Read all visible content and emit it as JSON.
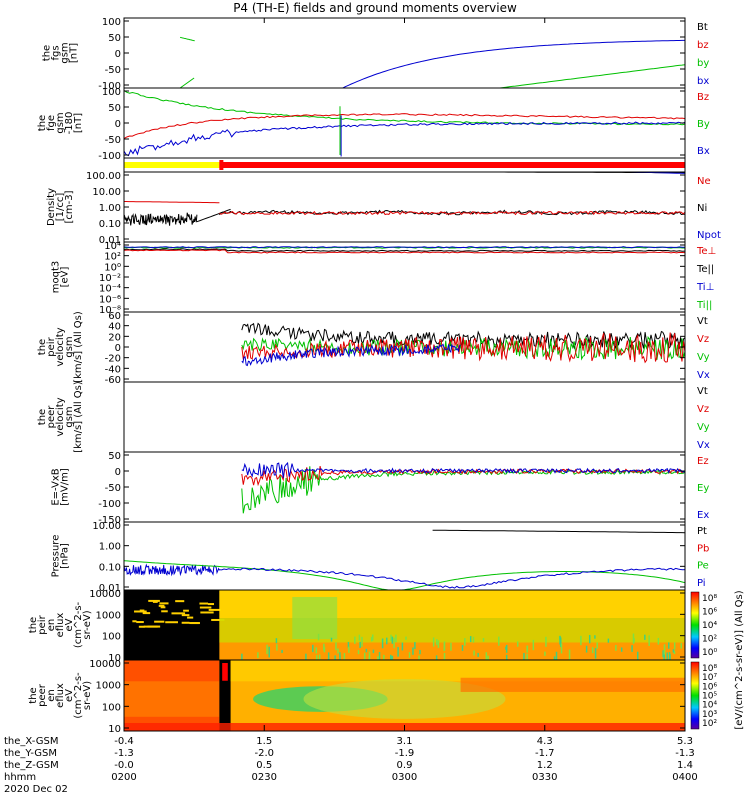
{
  "title": "P4 (TH-E) fields and ground moments overview",
  "chart_data": {
    "type": "line",
    "x_range_hhmm": [
      "0200",
      "0400"
    ],
    "panels": [
      {
        "id": "fgs",
        "ylabel": [
          "the",
          "fgs",
          "gsm",
          "[nT]"
        ],
        "yticks": [
          "100",
          "50",
          "0",
          "-50",
          "-100"
        ],
        "ylim": [
          -100,
          110
        ],
        "legend": [
          {
            "name": "Bt",
            "color": "#000000"
          },
          {
            "name": "bz",
            "color": "#e00000"
          },
          {
            "name": "by",
            "color": "#00c000"
          },
          {
            "name": "bx",
            "color": "#0000d0"
          }
        ]
      },
      {
        "id": "fge",
        "ylabel": [
          "the",
          "fge",
          "gsm",
          "-180",
          "[nT]"
        ],
        "yticks": [
          "100",
          "50",
          "0",
          "-50",
          "-100"
        ],
        "ylim": [
          -120,
          110
        ],
        "legend": [
          {
            "name": "Bz",
            "color": "#e00000"
          },
          {
            "name": "By",
            "color": "#00c000"
          },
          {
            "name": "Bx",
            "color": "#0000d0"
          }
        ]
      },
      {
        "id": "density",
        "ylabel": [
          "Density",
          "[1/cc]",
          "[cm-3]"
        ],
        "yticks": [
          "100.00",
          "10.00",
          "1.00",
          "0.10",
          "0.01"
        ],
        "legend": [
          {
            "name": "Ne",
            "color": "#e00000"
          },
          {
            "name": "Ni",
            "color": "#000000"
          },
          {
            "name": "Npot",
            "color": "#0000d0"
          }
        ]
      },
      {
        "id": "temp",
        "ylabel": [
          "moqt3",
          "[eV]"
        ],
        "yticks": [
          "10⁴",
          "10²",
          "10⁰",
          "10⁻²",
          "10⁻⁴",
          "10⁻⁶",
          "10⁻⁸"
        ],
        "legend": [
          {
            "name": "Te⊥",
            "color": "#e00000"
          },
          {
            "name": "Te||",
            "color": "#000000"
          },
          {
            "name": "Ti⊥",
            "color": "#0000d0"
          },
          {
            "name": "Ti||",
            "color": "#00c000"
          }
        ]
      },
      {
        "id": "peir_vel",
        "ylabel": [
          "the",
          "peir",
          "velocity",
          "gsm",
          "[km/s] (All Qs)"
        ],
        "yticks": [
          "60",
          "40",
          "20",
          "0",
          "-20",
          "-40",
          "-60"
        ],
        "ylim": [
          -65,
          60
        ],
        "legend": [
          {
            "name": "Vt",
            "color": "#000000"
          },
          {
            "name": "Vz",
            "color": "#e00000"
          },
          {
            "name": "Vy",
            "color": "#00c000"
          },
          {
            "name": "Vx",
            "color": "#0000d0"
          }
        ]
      },
      {
        "id": "peer_vel",
        "ylabel": [
          "the",
          "peer",
          "velocity",
          "gsm",
          "[km/s] (All Qs)"
        ],
        "yticks": [],
        "legend": [
          {
            "name": "Vt",
            "color": "#000000"
          },
          {
            "name": "Vz",
            "color": "#e00000"
          },
          {
            "name": "Vy",
            "color": "#00c000"
          },
          {
            "name": "Vx",
            "color": "#0000d0"
          }
        ]
      },
      {
        "id": "efield",
        "ylabel": [
          "E=-VxB",
          "[mV/m]"
        ],
        "yticks": [
          "50",
          "0",
          "-50",
          "-100",
          "-150"
        ],
        "ylim": [
          -165,
          60
        ],
        "legend": [
          {
            "name": "Ez",
            "color": "#e00000"
          },
          {
            "name": "Ey",
            "color": "#00c000"
          },
          {
            "name": "Ex",
            "color": "#0000d0"
          }
        ]
      },
      {
        "id": "pressure",
        "ylabel": [
          "Pressure",
          "[nPa]"
        ],
        "yticks": [
          "10.00",
          "1.00",
          "0.10",
          "0.01"
        ],
        "legend": [
          {
            "name": "Pt",
            "color": "#000000"
          },
          {
            "name": "Pb",
            "color": "#e00000"
          },
          {
            "name": "Pe",
            "color": "#00c000"
          },
          {
            "name": "Pi",
            "color": "#0000d0"
          }
        ]
      },
      {
        "id": "peir_spec",
        "ylabel": [
          "the",
          "peir",
          "en",
          "eflux",
          "eV",
          "(cm^2-s-",
          "sr-eV)"
        ],
        "yticks": [
          "10000",
          "1000",
          "100",
          "10"
        ]
      },
      {
        "id": "peer_spec",
        "ylabel": [
          "the",
          "peer",
          "en",
          "eflux",
          "eV",
          "(cm^2-s-",
          "sr-eV)"
        ],
        "yticks": [
          "10000",
          "1000",
          "100",
          "10"
        ]
      }
    ],
    "colorbars": [
      {
        "label": "[eV/(cm^2-s-sr-eV)] (All Qs)",
        "ticks": [
          "10⁸",
          "10⁶",
          "10⁴",
          "10²",
          "10⁰"
        ]
      },
      {
        "label": "[eV/(cm^2-s-sr-eV)] (All Qs)",
        "ticks": [
          "10⁸",
          "10⁷",
          "10⁶",
          "10⁵",
          "10⁴",
          "10³",
          "10²"
        ]
      }
    ],
    "bottom_colorbar_label": "[eV/(cm^2-s-sr-eV)] (All Qs)"
  },
  "footer": {
    "rows": [
      {
        "label": "the_X-GSM",
        "values": [
          "-0.4",
          "1.5",
          "3.1",
          "4.3",
          "5.3"
        ]
      },
      {
        "label": "the_Y-GSM",
        "values": [
          "-1.3",
          "-2.0",
          "-1.9",
          "-1.7",
          "-1.3"
        ]
      },
      {
        "label": "the_Z-GSM",
        "values": [
          "-0.0",
          "0.5",
          "0.9",
          "1.2",
          "1.4"
        ]
      },
      {
        "label": "hhmm",
        "values": [
          "0200",
          "0230",
          "0300",
          "0330",
          "0400"
        ]
      }
    ],
    "date": "2020 Dec 02"
  }
}
